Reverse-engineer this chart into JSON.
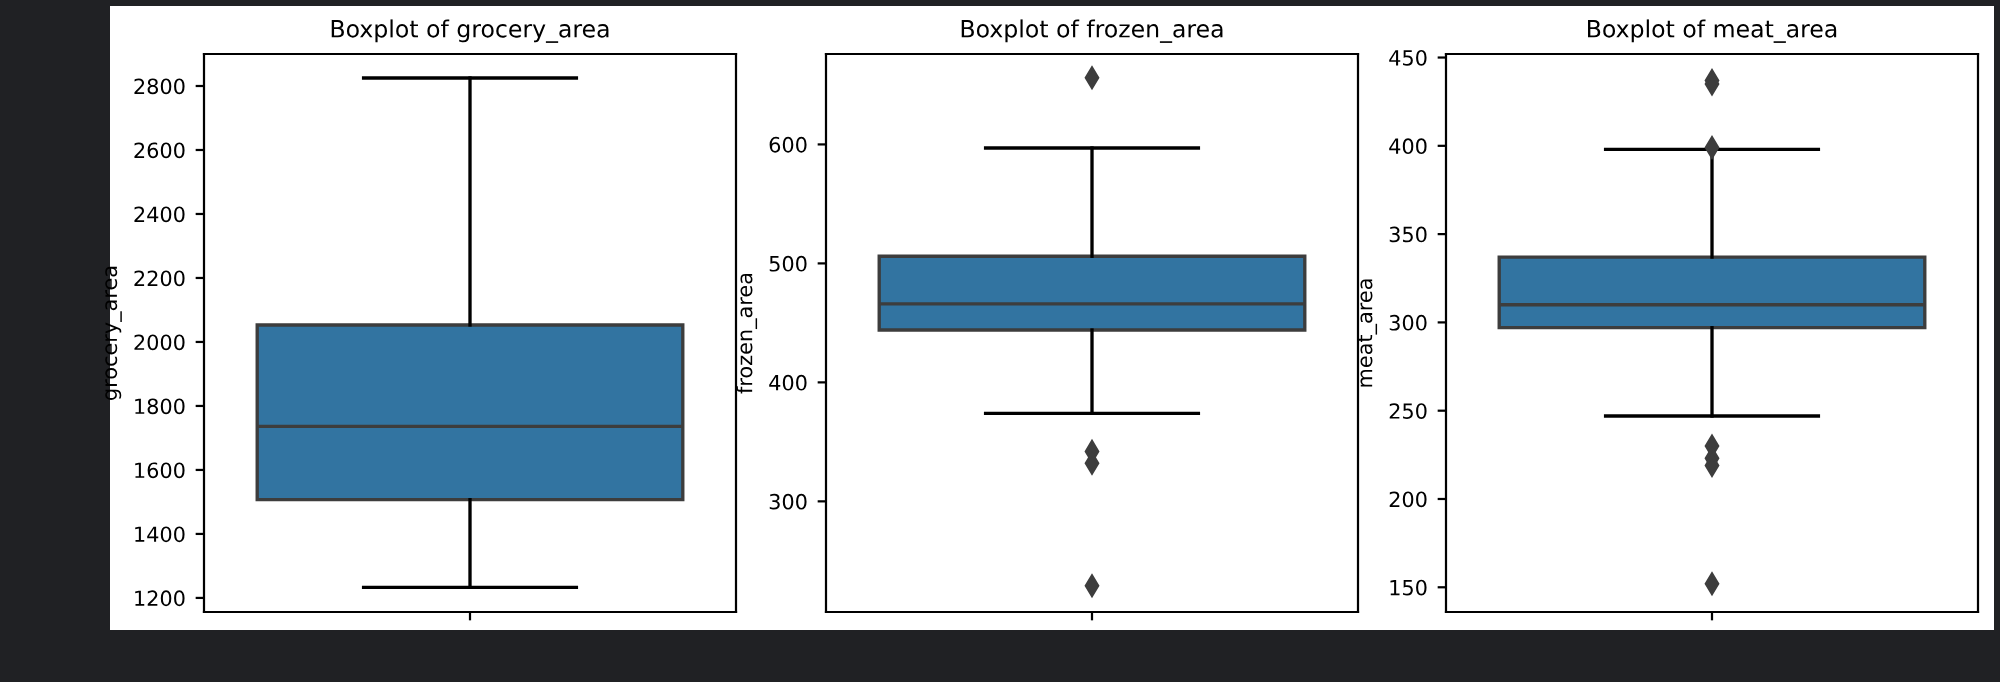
{
  "chart_data": [
    {
      "type": "box",
      "title": "Boxplot of grocery_area",
      "ylabel": "grocery_area",
      "categories": [
        null
      ],
      "color": "#3274a1",
      "boxes": [
        {
          "low": 1233,
          "q1": 1507,
          "median": 1736,
          "q3": 2053,
          "high": 2825
        }
      ],
      "ylim": [
        1156,
        2900
      ],
      "yticks": [
        1200,
        1400,
        1600,
        1800,
        2000,
        2200,
        2400,
        2600,
        2800
      ]
    },
    {
      "type": "box",
      "title": "Boxplot of frozen_area",
      "ylabel": "frozen_area",
      "categories": [
        null
      ],
      "color": "#3274a1",
      "boxes": [
        {
          "low": 374,
          "q1": 444,
          "median": 466,
          "q3": 506,
          "high": 597,
          "outliers": [
            656,
            342,
            332,
            229
          ]
        }
      ],
      "ylim": [
        207,
        676
      ],
      "yticks": [
        300,
        400,
        500,
        600
      ]
    },
    {
      "type": "box",
      "title": "Boxplot of meat_area",
      "ylabel": "meat_area",
      "categories": [
        null
      ],
      "color": "#3274a1",
      "boxes": [
        {
          "low": 247,
          "q1": 297,
          "median": 310,
          "q3": 337,
          "high": 398,
          "outliers": [
            437,
            435,
            399,
            230,
            223,
            219,
            152
          ]
        }
      ],
      "ylim": [
        136,
        452
      ],
      "yticks": [
        150,
        200,
        250,
        300,
        350,
        400,
        450
      ]
    }
  ]
}
